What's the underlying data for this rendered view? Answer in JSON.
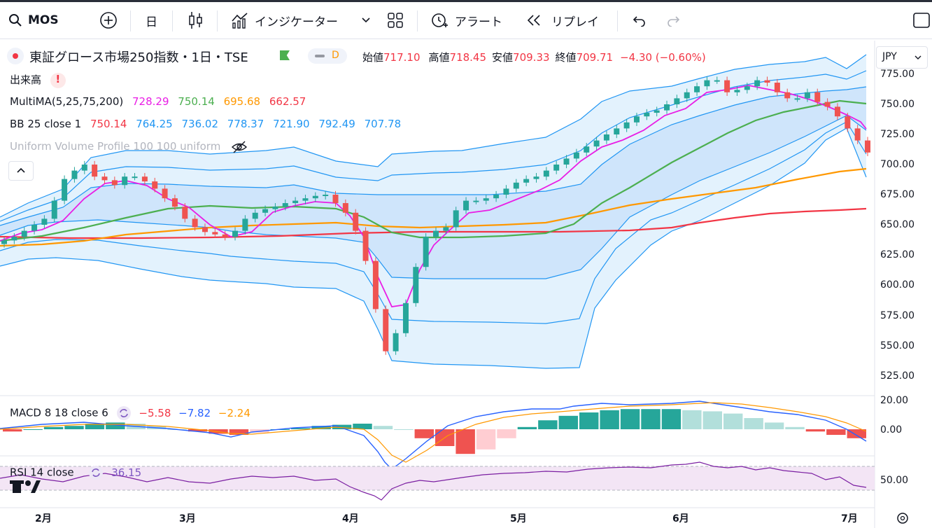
{
  "toolbar": {
    "symbol": "MOS",
    "interval": "日",
    "indicators_label": "インジケーター",
    "alert_label": "アラート",
    "replay_label": "リプレイ"
  },
  "header": {
    "title": "東証グロース市場250指数・1日・TSE",
    "status": "D",
    "open_label": "始値",
    "open": "717.10",
    "high_label": "高値",
    "high": "718.45",
    "low_label": "安値",
    "low": "709.33",
    "close_label": "終値",
    "close": "709.71",
    "change": "−4.30 (−0.60%)",
    "currency": "JPY"
  },
  "legend": {
    "volume": "出来高",
    "ma_name": "MultiMA(5,25,75,200)",
    "ma_values": [
      "728.29",
      "750.14",
      "695.68",
      "662.57"
    ],
    "bb_name": "BB 25 close 1",
    "bb_values": [
      "750.14",
      "764.25",
      "736.02",
      "778.37",
      "721.90",
      "792.49",
      "707.78"
    ],
    "vp_name": "Uniform Volume Profile 100 100 uniform",
    "macd_name": "MACD 8 18 close 6",
    "macd_values": [
      "−5.58",
      "−7.82",
      "−2.24"
    ],
    "rsi_name": "RSI 14 close",
    "rsi_value": "36.15"
  },
  "price_axis": [
    "775.00",
    "750.00",
    "725.00",
    "700.00",
    "675.00",
    "650.00",
    "625.00",
    "600.00",
    "575.00",
    "550.00",
    "525.00"
  ],
  "macd_axis": [
    "20.00",
    "0.00"
  ],
  "rsi_axis": [
    "50.00"
  ],
  "time_axis": [
    "2月",
    "3月",
    "4月",
    "5月",
    "6月",
    "7月"
  ],
  "colors": {
    "up": "#26a69a",
    "down": "#ef5350",
    "ma5": "#e91ee5",
    "ma25": "#4caf50",
    "ma75": "#ff9800",
    "ma200": "#f23645",
    "bb": "#2196f3",
    "macd": "#2962ff",
    "signal": "#ff9800",
    "rsi": "#7e57c2"
  },
  "chart_data": {
    "type": "candlestick",
    "x": [
      "2月",
      "3月",
      "4月",
      "5月",
      "6月",
      "7月"
    ],
    "ylim": [
      520,
      785
    ],
    "candles_close": [
      637,
      640,
      645,
      650,
      655,
      670,
      688,
      695,
      700,
      690,
      687,
      683,
      690,
      690,
      686,
      680,
      672,
      665,
      655,
      648,
      644,
      642,
      640,
      645,
      655,
      660,
      663,
      665,
      668,
      670,
      672,
      674,
      675,
      668,
      660,
      645,
      620,
      580,
      545,
      560,
      585,
      615,
      640,
      645,
      648,
      662,
      670,
      670,
      672,
      675,
      680,
      685,
      688,
      690,
      695,
      700,
      705,
      710,
      715,
      720,
      725,
      730,
      735,
      740,
      743,
      745,
      750,
      755,
      760,
      765,
      770,
      770,
      760,
      762,
      765,
      770,
      768,
      760,
      755,
      755,
      760,
      752,
      748,
      740,
      730,
      720,
      710
    ],
    "ma75_values": [
      632,
      632,
      633,
      634,
      636,
      640,
      644,
      647,
      648,
      650,
      650,
      649,
      648,
      649,
      650,
      650,
      650,
      648,
      648,
      648,
      648,
      650,
      650,
      653,
      655,
      658,
      663,
      668,
      673,
      678,
      683,
      688,
      693,
      696
    ],
    "ma200_values": [
      639,
      639,
      640,
      640,
      641,
      642,
      643,
      644,
      645,
      646,
      648,
      650,
      652,
      656,
      660,
      662
    ],
    "macd_values": [
      -2,
      0,
      2,
      3,
      5,
      6,
      5,
      3,
      0,
      -2,
      -4,
      -5,
      -3,
      0,
      1,
      3,
      4,
      5,
      3,
      0,
      -8,
      -15,
      -22,
      -18,
      -8,
      2,
      8,
      12,
      15,
      17,
      18,
      18,
      18,
      17,
      16,
      14,
      10,
      6,
      2,
      -2,
      -5,
      -8
    ],
    "rsi_values": [
      55,
      55,
      53,
      52,
      54,
      55,
      53,
      52,
      54,
      53,
      56,
      57,
      55,
      54,
      52,
      50,
      48,
      44,
      35,
      40,
      46,
      50,
      53,
      55,
      56,
      57,
      58,
      59,
      57,
      56,
      55,
      53,
      51,
      50,
      48,
      44,
      40,
      38,
      36
    ]
  }
}
